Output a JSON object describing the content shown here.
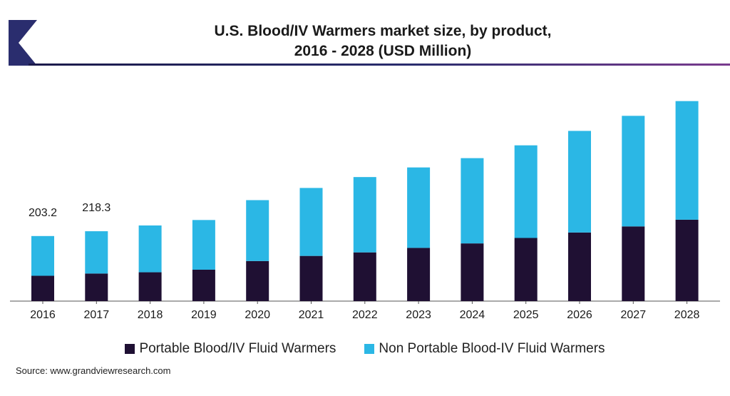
{
  "title_line1": "U.S. Blood/IV Warmers market size, by product,",
  "title_line2": "2016 - 2028 (USD Million)",
  "source": "Source: www.grandviewresearch.com",
  "colors": {
    "portable": "#1f1033",
    "non_portable": "#2bb7e5",
    "axis": "#555555",
    "rule_start": "#1b1a4a",
    "rule_end": "#7a3b8e"
  },
  "chart_data": {
    "type": "bar",
    "stacked": true,
    "categories": [
      "2016",
      "2017",
      "2018",
      "2019",
      "2020",
      "2021",
      "2022",
      "2023",
      "2024",
      "2025",
      "2026",
      "2027",
      "2028"
    ],
    "series": [
      {
        "name": "Portable Blood/IV Fluid Warmers",
        "values": [
          79,
          86,
          90,
          98,
          125,
          141,
          152,
          166,
          180,
          197,
          214,
          233,
          254
        ]
      },
      {
        "name": "Non Portable Blood-IV Fluid Warmers",
        "values": [
          124,
          132,
          146,
          155,
          190,
          212,
          235,
          251,
          266,
          289,
          317,
          345,
          370
        ]
      }
    ],
    "data_labels": [
      {
        "category": "2016",
        "text": "203.2"
      },
      {
        "category": "2017",
        "text": "218.3"
      }
    ],
    "ylim": [
      0,
      650
    ],
    "grid": false,
    "legend_position": "bottom"
  }
}
